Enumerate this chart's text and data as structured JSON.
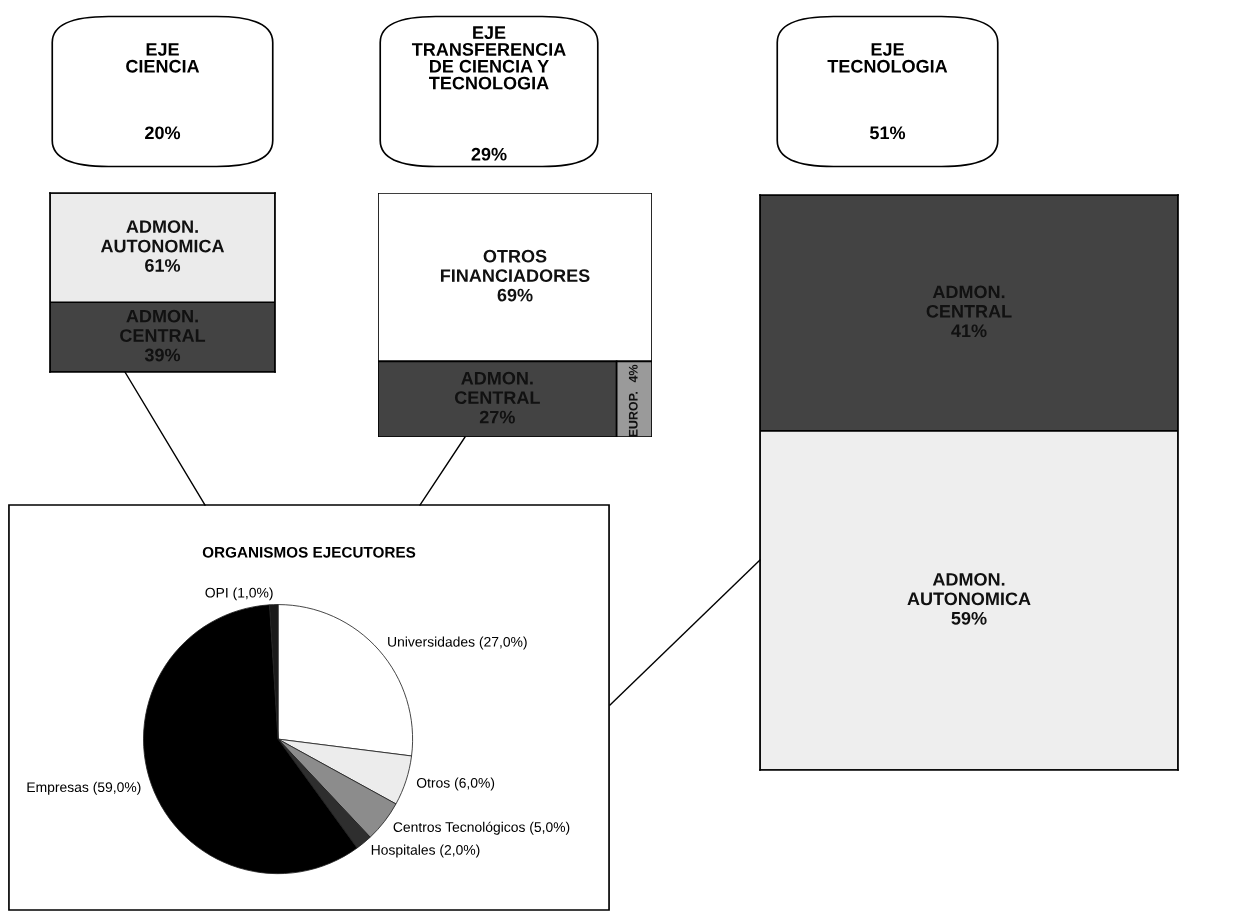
{
  "chart_data": [
    {
      "type": "other",
      "title": "EJE\nCIENCIA",
      "annotations": [
        "20%"
      ]
    },
    {
      "type": "other",
      "title": "EJE\nTRANSFERENCIA\nDE CIENCIA Y\nTECNOLOGIA",
      "annotations": [
        "29%"
      ]
    },
    {
      "type": "other",
      "title": "EJE\nTECNOLOGIA",
      "annotations": [
        "51%"
      ]
    },
    {
      "type": "bar",
      "stacked": true,
      "categories": [
        null
      ],
      "ylim": [
        0,
        100
      ],
      "tick_labels": false,
      "series": [
        {
          "name": "ADMON.\nCENTRAL",
          "color": "#434343",
          "values": [
            39
          ],
          "value_labels": [
            "39%"
          ]
        },
        {
          "name": "ADMON.\nAUTONOMICA",
          "color": "#ebebeb",
          "values": [
            61
          ],
          "value_labels": [
            "61%"
          ]
        }
      ]
    },
    {
      "type": "other",
      "categories": [
        "OTROS\nFINANCIADORES",
        "ADMON.\nCENTRAL",
        "EUROP."
      ],
      "values": [
        69,
        27,
        4
      ],
      "colors": [
        "#ffffff",
        "#434343",
        "#9a9a9a"
      ],
      "value_labels": [
        "69%",
        "27%",
        "4%"
      ]
    },
    {
      "type": "pie",
      "title": "ORGANISMOS EJECUTORES",
      "categories": [
        "Universidades (27,0%)",
        "Otros (6,0%)",
        "Centros Tecnológicos (5,0%)",
        "Hospitales (2,0%)",
        "Empresas (59,0%)",
        "OPI (1,0%)"
      ],
      "values": [
        27,
        6,
        5,
        2,
        59,
        1
      ],
      "colors": [
        "#ffffff",
        "#ececec",
        "#8c8c8c",
        "#2e2e2e",
        "#000000",
        "#1a1a1a"
      ]
    },
    {
      "type": "bar",
      "stacked": true,
      "categories": [
        null
      ],
      "ylim": [
        0,
        100
      ],
      "tick_labels": false,
      "series": [
        {
          "name": "ADMON.\nAUTONOMICA",
          "color": "#eeeeee",
          "values": [
            59
          ],
          "value_labels": [
            "59%"
          ]
        },
        {
          "name": "ADMON.\nCENTRAL",
          "color": "#434343",
          "values": [
            41
          ],
          "value_labels": [
            "41%"
          ]
        }
      ]
    }
  ]
}
